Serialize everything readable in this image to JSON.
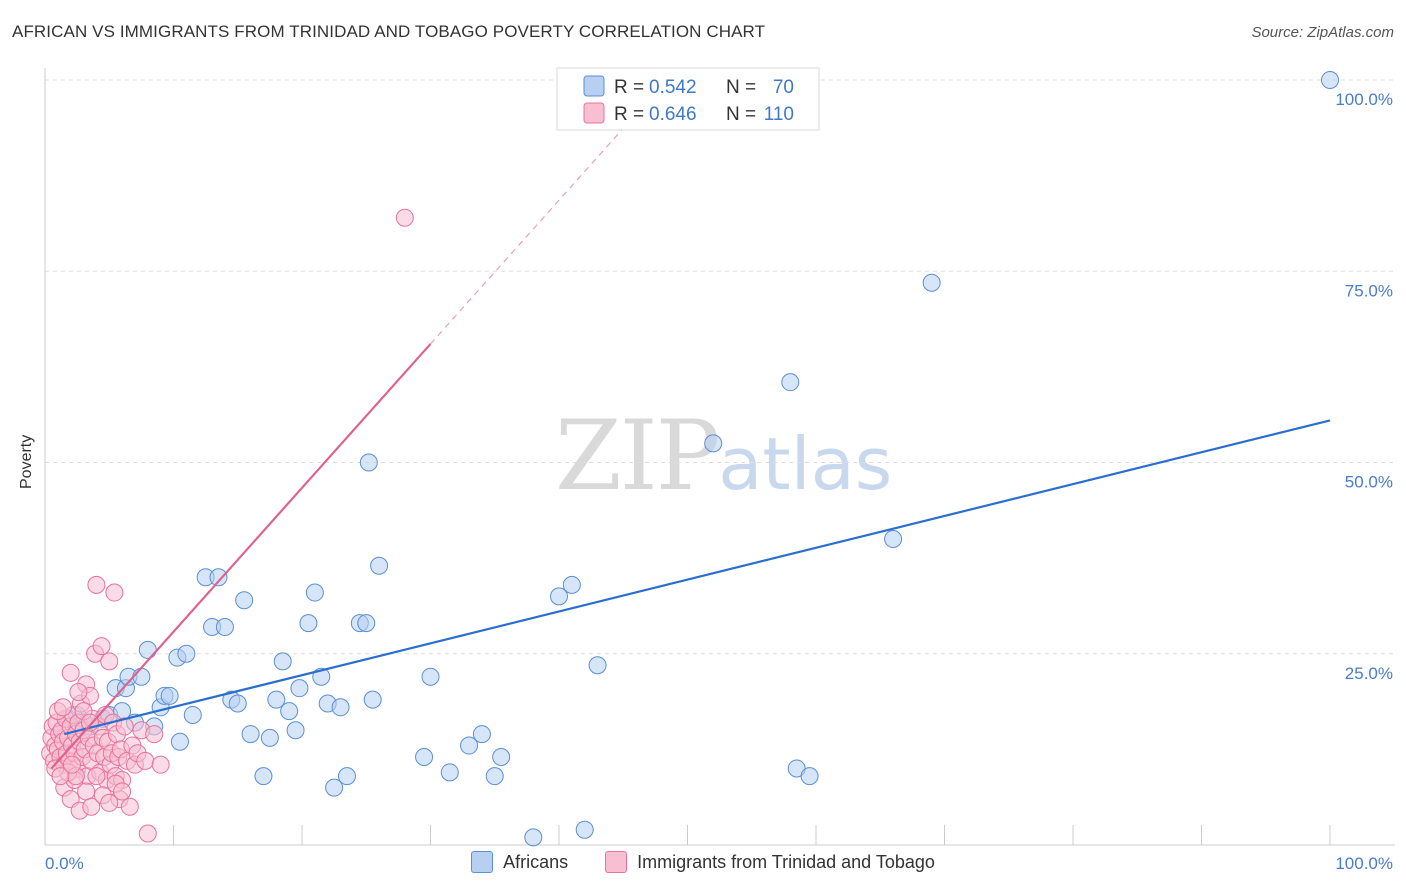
{
  "title": "AFRICAN VS IMMIGRANTS FROM TRINIDAD AND TOBAGO POVERTY CORRELATION CHART",
  "source": "Source: ZipAtlas.com",
  "watermark": {
    "zip": "ZIP",
    "atlas": "atlas"
  },
  "colors": {
    "blue": "#5b8fd6",
    "blue_fill": "#b7d0f2",
    "blue_line": "#2a6fcf",
    "pink": "#e8739a",
    "pink_fill": "#f8bfd2",
    "pink_line": "#e0628e"
  },
  "legend_top": [
    {
      "r_label": "R = ",
      "r_value": "0.542",
      "n_label": "N = ",
      "n_value": "70"
    },
    {
      "r_label": "R = ",
      "r_value": "0.646",
      "n_label": "N = ",
      "n_value": "110"
    }
  ],
  "chart_data": {
    "type": "scatter",
    "title": "AFRICAN VS IMMIGRANTS FROM TRINIDAD AND TOBAGO POVERTY CORRELATION CHART",
    "xlabel": "",
    "ylabel": "Poverty",
    "xlim": [
      0,
      100
    ],
    "ylim": [
      0,
      100
    ],
    "x_tick_labels": [
      "0.0%",
      "100.0%"
    ],
    "y_ticks": [
      25,
      50,
      75,
      100
    ],
    "y_tick_labels": [
      "25.0%",
      "50.0%",
      "75.0%",
      "100.0%"
    ],
    "grid": true,
    "legend_position": "bottom-center",
    "series": [
      {
        "name": "Africans",
        "color": "#5b8fd6",
        "r": 0.542,
        "n": 70,
        "trend": {
          "x": [
            1.5,
            100
          ],
          "y": [
            14.5,
            55.5
          ]
        },
        "points": [
          [
            1.8,
            16.5
          ],
          [
            2.5,
            17
          ],
          [
            3,
            16
          ],
          [
            3.5,
            15.5
          ],
          [
            4.5,
            16.5
          ],
          [
            5,
            17
          ],
          [
            5.5,
            20.5
          ],
          [
            6,
            17.5
          ],
          [
            6.3,
            20.5
          ],
          [
            6.5,
            22
          ],
          [
            7,
            16
          ],
          [
            7.5,
            22
          ],
          [
            8,
            25.5
          ],
          [
            8.5,
            15.5
          ],
          [
            9,
            18
          ],
          [
            9.3,
            19.5
          ],
          [
            9.7,
            19.5
          ],
          [
            10.3,
            24.5
          ],
          [
            10.5,
            13.5
          ],
          [
            11,
            25
          ],
          [
            11.5,
            17
          ],
          [
            12.5,
            35
          ],
          [
            13,
            28.5
          ],
          [
            13.5,
            35
          ],
          [
            14,
            28.5
          ],
          [
            14.5,
            19
          ],
          [
            15,
            18.5
          ],
          [
            15.5,
            32
          ],
          [
            16,
            14.5
          ],
          [
            17,
            9
          ],
          [
            17.5,
            14
          ],
          [
            18,
            19
          ],
          [
            18.5,
            24
          ],
          [
            19,
            17.5
          ],
          [
            19.5,
            15
          ],
          [
            19.8,
            20.5
          ],
          [
            20.5,
            29
          ],
          [
            21,
            33
          ],
          [
            21.5,
            22
          ],
          [
            22,
            18.5
          ],
          [
            22.5,
            7.5
          ],
          [
            23,
            18
          ],
          [
            23.5,
            9
          ],
          [
            24.5,
            29
          ],
          [
            25,
            29
          ],
          [
            25.2,
            50
          ],
          [
            25.5,
            19
          ],
          [
            26,
            36.5
          ],
          [
            29.5,
            11.5
          ],
          [
            30,
            22
          ],
          [
            31.5,
            9.5
          ],
          [
            33,
            13
          ],
          [
            34,
            14.5
          ],
          [
            35,
            9
          ],
          [
            35.5,
            11.5
          ],
          [
            38,
            1
          ],
          [
            40,
            32.5
          ],
          [
            41,
            34
          ],
          [
            42,
            2
          ],
          [
            43,
            23.5
          ],
          [
            52,
            52.5
          ],
          [
            58,
            60.5
          ],
          [
            58.5,
            10
          ],
          [
            59.5,
            9
          ],
          [
            66,
            40
          ],
          [
            69,
            73.5
          ],
          [
            100,
            100
          ]
        ]
      },
      {
        "name": "Immigrants from Trinidad and Tobago",
        "color": "#e8739a",
        "r": 0.646,
        "n": 110,
        "trend": {
          "x": [
            0.5,
            30
          ],
          "y": [
            10,
            65.5
          ]
        },
        "trend_extension": {
          "x": [
            30,
            46.5
          ],
          "y": [
            65.5,
            96.5
          ]
        },
        "points": [
          [
            0.4,
            12
          ],
          [
            0.5,
            14
          ],
          [
            0.6,
            15.5
          ],
          [
            0.7,
            11
          ],
          [
            0.8,
            13
          ],
          [
            0.9,
            16
          ],
          [
            1,
            12.5
          ],
          [
            1.1,
            14.5
          ],
          [
            1.2,
            11.5
          ],
          [
            1.3,
            15
          ],
          [
            1.4,
            13.5
          ],
          [
            1.5,
            10.5
          ],
          [
            1.6,
            16.5
          ],
          [
            1.7,
            12
          ],
          [
            1.8,
            14
          ],
          [
            1.9,
            11
          ],
          [
            2,
            15.5
          ],
          [
            2.1,
            13
          ],
          [
            2.2,
            17
          ],
          [
            2.3,
            12
          ],
          [
            2.4,
            14.5
          ],
          [
            2.5,
            10
          ],
          [
            2.6,
            16
          ],
          [
            2.7,
            13.5
          ],
          [
            2.8,
            18.5
          ],
          [
            2.9,
            11.5
          ],
          [
            3,
            15
          ],
          [
            3.1,
            12.5
          ],
          [
            3.2,
            21
          ],
          [
            3.3,
            9
          ],
          [
            3.4,
            14
          ],
          [
            3.5,
            19.5
          ],
          [
            3.6,
            11
          ],
          [
            3.7,
            16.5
          ],
          [
            3.8,
            13
          ],
          [
            3.9,
            25
          ],
          [
            4,
            34
          ],
          [
            4.1,
            12
          ],
          [
            4.2,
            15.5
          ],
          [
            4.3,
            9.5
          ],
          [
            4.4,
            26
          ],
          [
            4.5,
            14
          ],
          [
            4.6,
            11.5
          ],
          [
            4.7,
            17
          ],
          [
            4.8,
            8.5
          ],
          [
            4.9,
            13.5
          ],
          [
            5,
            24
          ],
          [
            5.1,
            10.5
          ],
          [
            5.2,
            12
          ],
          [
            5.3,
            16
          ],
          [
            5.4,
            33
          ],
          [
            5.5,
            9
          ],
          [
            5.6,
            14.5
          ],
          [
            5.7,
            11.5
          ],
          [
            5.8,
            6
          ],
          [
            5.9,
            12.5
          ],
          [
            6,
            8.5
          ],
          [
            6.2,
            15.5
          ],
          [
            6.4,
            11
          ],
          [
            6.6,
            5
          ],
          [
            6.8,
            13
          ],
          [
            7,
            10.5
          ],
          [
            7.2,
            12
          ],
          [
            7.5,
            15
          ],
          [
            7.8,
            11
          ],
          [
            8,
            1.5
          ],
          [
            8.5,
            14.5
          ],
          [
            9,
            10.5
          ],
          [
            1.5,
            7.5
          ],
          [
            2,
            6
          ],
          [
            2.3,
            8.5
          ],
          [
            2.7,
            4.5
          ],
          [
            3.2,
            7
          ],
          [
            3.6,
            5
          ],
          [
            4,
            9
          ],
          [
            4.5,
            6.5
          ],
          [
            5,
            5.5
          ],
          [
            5.5,
            8
          ],
          [
            6,
            7
          ],
          [
            1,
            17.5
          ],
          [
            1.4,
            18
          ],
          [
            2,
            22.5
          ],
          [
            2.6,
            20
          ],
          [
            3,
            17.5
          ],
          [
            3.5,
            16
          ],
          [
            1.8,
            9.5
          ],
          [
            2.4,
            9
          ],
          [
            0.8,
            10
          ],
          [
            1.2,
            9
          ],
          [
            2.1,
            10.5
          ],
          [
            28,
            82
          ]
        ]
      }
    ]
  }
}
